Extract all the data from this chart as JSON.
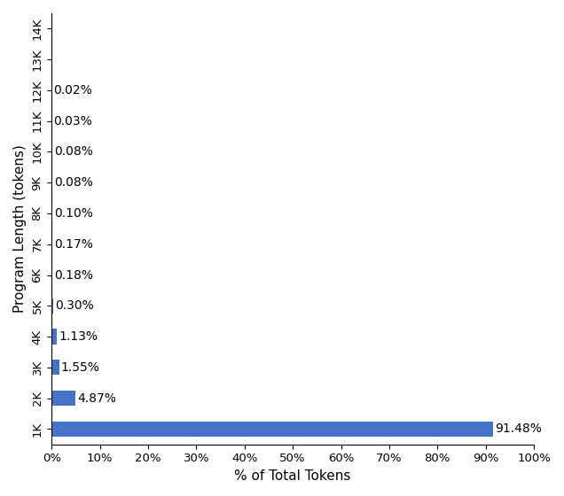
{
  "categories": [
    "1K",
    "2K",
    "3K",
    "4K",
    "5K",
    "6K",
    "7K",
    "8K",
    "9K",
    "10K",
    "11K",
    "12K",
    "13K",
    "14K"
  ],
  "values": [
    91.48,
    4.87,
    1.55,
    1.13,
    0.3,
    0.18,
    0.17,
    0.1,
    0.08,
    0.08,
    0.03,
    0.02,
    0.0,
    0.0
  ],
  "bar_color": "#4472c4",
  "xlabel": "% of Total Tokens",
  "ylabel": "Program Length (tokens)",
  "xlim": [
    0,
    100
  ],
  "label_fontsize": 11,
  "tick_fontsize": 9.5,
  "bar_label_fontsize": 10,
  "x_ticks": [
    0,
    10,
    20,
    30,
    40,
    50,
    60,
    70,
    80,
    90,
    100
  ],
  "x_tick_labels": [
    "0%",
    "10%",
    "20%",
    "30%",
    "40%",
    "50%",
    "60%",
    "70%",
    "80%",
    "90%",
    "100%"
  ]
}
